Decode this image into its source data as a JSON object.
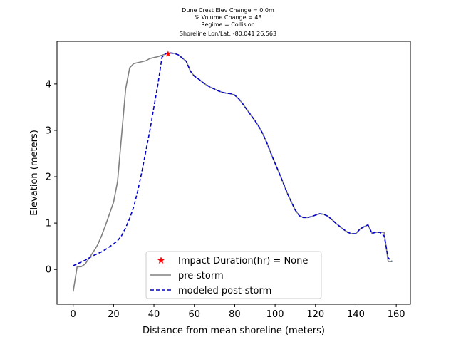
{
  "chart_data": {
    "type": "line",
    "title_lines": [
      "Dune Crest Elev Change = 0.0m",
      "% Volume Change = 43",
      "Regime = Collision",
      "Shoreline Lon/Lat: -80.041 26.563"
    ],
    "xlabel": "Distance from mean shoreline (meters)",
    "ylabel": "Elevation (meters)",
    "xlim": [
      -8,
      167
    ],
    "ylim": [
      -0.75,
      4.92
    ],
    "xticks": [
      0,
      20,
      40,
      60,
      80,
      100,
      120,
      140,
      160
    ],
    "yticks": [
      0,
      1,
      2,
      3,
      4
    ],
    "legend_position": "lower-center",
    "series": [
      {
        "name": "Impact Duration(hr) = None",
        "style": "marker-star",
        "color": "#ff0000",
        "x": [
          47
        ],
        "y": [
          4.66
        ]
      },
      {
        "name": "pre-storm",
        "style": "solid",
        "color": "#808080",
        "x": [
          0,
          2,
          4,
          6,
          8,
          10,
          12,
          14,
          16,
          18,
          20,
          22,
          24,
          26,
          28,
          30,
          32,
          34,
          36,
          38,
          40,
          42,
          44,
          46,
          48,
          50,
          52,
          54,
          56,
          58,
          60,
          62,
          64,
          66,
          68,
          70,
          72,
          74,
          76,
          78,
          80,
          82,
          84,
          86,
          88,
          90,
          92,
          94,
          96,
          98,
          100,
          102,
          104,
          106,
          108,
          110,
          112,
          114,
          116,
          118,
          120,
          122,
          124,
          126,
          128,
          130,
          132,
          134,
          136,
          138,
          140,
          142,
          144,
          146,
          148,
          150,
          152,
          154,
          156,
          158
        ],
        "y": [
          -0.48,
          0.06,
          0.06,
          0.12,
          0.25,
          0.38,
          0.52,
          0.72,
          0.95,
          1.2,
          1.45,
          1.9,
          2.9,
          3.9,
          4.35,
          4.44,
          4.46,
          4.48,
          4.5,
          4.55,
          4.57,
          4.59,
          4.62,
          4.65,
          4.67,
          4.66,
          4.63,
          4.56,
          4.49,
          4.28,
          4.17,
          4.11,
          4.04,
          3.98,
          3.93,
          3.89,
          3.85,
          3.82,
          3.8,
          3.79,
          3.76,
          3.68,
          3.57,
          3.45,
          3.33,
          3.21,
          3.08,
          2.92,
          2.72,
          2.5,
          2.29,
          2.08,
          1.87,
          1.65,
          1.46,
          1.28,
          1.16,
          1.12,
          1.12,
          1.14,
          1.17,
          1.2,
          1.19,
          1.15,
          1.08,
          1.0,
          0.93,
          0.86,
          0.8,
          0.77,
          0.77,
          0.87,
          0.92,
          0.96,
          0.78,
          0.8,
          0.8,
          0.8,
          0.17,
          0.17
        ]
      },
      {
        "name": "modeled post-storm",
        "style": "dashed",
        "color": "#0000cc",
        "x": [
          0,
          2,
          4,
          6,
          8,
          10,
          12,
          14,
          16,
          18,
          20,
          22,
          24,
          26,
          28,
          30,
          32,
          34,
          36,
          38,
          40,
          42,
          44,
          46,
          48,
          50,
          52,
          54,
          56,
          58,
          60,
          62,
          64,
          66,
          68,
          70,
          72,
          74,
          76,
          78,
          80,
          82,
          84,
          86,
          88,
          90,
          92,
          94,
          96,
          98,
          100,
          102,
          104,
          106,
          108,
          110,
          112,
          114,
          116,
          118,
          120,
          122,
          124,
          126,
          128,
          130,
          132,
          134,
          136,
          138,
          140,
          142,
          144,
          146,
          148,
          150,
          152,
          154,
          156,
          158
        ],
        "y": [
          0.08,
          0.12,
          0.16,
          0.2,
          0.25,
          0.3,
          0.34,
          0.38,
          0.43,
          0.49,
          0.55,
          0.62,
          0.73,
          0.9,
          1.1,
          1.35,
          1.7,
          2.1,
          2.55,
          3.0,
          3.5,
          4.0,
          4.58,
          4.66,
          4.67,
          4.66,
          4.63,
          4.56,
          4.49,
          4.28,
          4.17,
          4.11,
          4.04,
          3.98,
          3.93,
          3.89,
          3.85,
          3.82,
          3.8,
          3.79,
          3.76,
          3.68,
          3.57,
          3.45,
          3.33,
          3.21,
          3.08,
          2.92,
          2.72,
          2.5,
          2.29,
          2.08,
          1.87,
          1.65,
          1.46,
          1.28,
          1.16,
          1.12,
          1.12,
          1.14,
          1.17,
          1.2,
          1.19,
          1.15,
          1.08,
          1.0,
          0.93,
          0.86,
          0.8,
          0.77,
          0.77,
          0.87,
          0.92,
          0.96,
          0.78,
          0.8,
          0.8,
          0.72,
          0.25,
          0.17
        ]
      }
    ]
  }
}
